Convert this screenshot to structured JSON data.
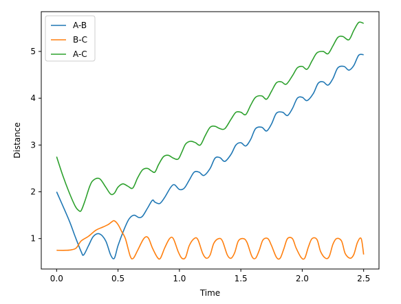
{
  "chart_data": {
    "type": "line",
    "xlabel": "Time",
    "ylabel": "Distance",
    "xlim": [
      -0.125,
      2.625
    ],
    "ylim": [
      0.35,
      5.85
    ],
    "xticks": [
      0.0,
      0.5,
      1.0,
      1.5,
      2.0,
      2.5
    ],
    "xtick_labels": [
      "0.0",
      "0.5",
      "1.0",
      "1.5",
      "2.0",
      "2.5"
    ],
    "yticks": [
      1,
      2,
      3,
      4,
      5
    ],
    "ytick_labels": [
      "1",
      "2",
      "3",
      "4",
      "5"
    ],
    "legend_position": "top-left",
    "grid": false,
    "series": [
      {
        "name": "A-B",
        "color": "#1f77b4",
        "x": [
          0.0,
          0.1,
          0.15,
          0.2,
          0.22,
          0.26,
          0.3,
          0.35,
          0.4,
          0.44,
          0.47,
          0.5,
          0.55,
          0.59,
          0.63,
          0.67,
          0.7,
          0.74,
          0.78,
          0.8,
          0.84,
          0.88,
          0.93,
          0.96,
          1.0,
          1.04,
          1.08,
          1.12,
          1.16,
          1.2,
          1.25,
          1.29,
          1.33,
          1.37,
          1.42,
          1.46,
          1.5,
          1.54,
          1.58,
          1.62,
          1.67,
          1.71,
          1.75,
          1.79,
          1.84,
          1.88,
          1.92,
          1.96,
          2.0,
          2.04,
          2.09,
          2.13,
          2.17,
          2.21,
          2.25,
          2.29,
          2.34,
          2.38,
          2.42,
          2.46,
          2.5
        ],
        "y": [
          2.0,
          1.4,
          1.05,
          0.72,
          0.65,
          0.85,
          1.05,
          1.1,
          0.95,
          0.65,
          0.58,
          0.85,
          1.2,
          1.42,
          1.5,
          1.45,
          1.48,
          1.65,
          1.82,
          1.78,
          1.75,
          1.88,
          2.1,
          2.15,
          2.05,
          2.08,
          2.25,
          2.42,
          2.42,
          2.35,
          2.5,
          2.72,
          2.73,
          2.65,
          2.8,
          3.0,
          3.05,
          2.98,
          3.12,
          3.35,
          3.38,
          3.3,
          3.45,
          3.68,
          3.7,
          3.63,
          3.78,
          4.0,
          4.02,
          3.95,
          4.1,
          4.32,
          4.35,
          4.28,
          4.42,
          4.65,
          4.68,
          4.6,
          4.7,
          4.92,
          4.93
        ]
      },
      {
        "name": "B-C",
        "color": "#ff7f0e",
        "x": [
          0.0,
          0.08,
          0.12,
          0.16,
          0.2,
          0.26,
          0.32,
          0.38,
          0.42,
          0.45,
          0.47,
          0.5,
          0.53,
          0.56,
          0.6,
          0.625,
          0.66,
          0.71,
          0.745,
          0.78,
          0.82,
          0.845,
          0.88,
          0.92,
          0.95,
          0.99,
          1.02,
          1.05,
          1.08,
          1.12,
          1.15,
          1.19,
          1.22,
          1.25,
          1.28,
          1.32,
          1.35,
          1.39,
          1.42,
          1.45,
          1.48,
          1.52,
          1.55,
          1.59,
          1.62,
          1.65,
          1.68,
          1.72,
          1.75,
          1.79,
          1.82,
          1.85,
          1.88,
          1.92,
          1.95,
          1.99,
          2.02,
          2.05,
          2.08,
          2.12,
          2.15,
          2.19,
          2.22,
          2.25,
          2.28,
          2.32,
          2.35,
          2.39,
          2.42,
          2.45,
          2.48,
          2.5
        ],
        "y": [
          0.75,
          0.75,
          0.76,
          0.8,
          0.95,
          1.05,
          1.18,
          1.25,
          1.3,
          1.36,
          1.38,
          1.3,
          1.15,
          1.0,
          0.62,
          0.58,
          0.75,
          1.0,
          1.02,
          0.8,
          0.6,
          0.58,
          0.8,
          1.0,
          1.0,
          0.72,
          0.58,
          0.6,
          0.85,
          1.0,
          0.98,
          0.68,
          0.58,
          0.65,
          0.9,
          1.0,
          0.95,
          0.65,
          0.58,
          0.7,
          0.95,
          1.0,
          0.92,
          0.62,
          0.58,
          0.75,
          0.97,
          1.0,
          0.85,
          0.6,
          0.58,
          0.78,
          1.0,
          1.0,
          0.8,
          0.6,
          0.58,
          0.82,
          1.0,
          0.98,
          0.72,
          0.58,
          0.62,
          0.88,
          1.0,
          0.95,
          0.68,
          0.58,
          0.66,
          0.92,
          1.0,
          0.66
        ]
      },
      {
        "name": "A-C",
        "color": "#2ca02c",
        "x": [
          0.0,
          0.05,
          0.1,
          0.15,
          0.18,
          0.2,
          0.23,
          0.27,
          0.3,
          0.35,
          0.4,
          0.44,
          0.47,
          0.5,
          0.54,
          0.58,
          0.62,
          0.66,
          0.7,
          0.74,
          0.77,
          0.8,
          0.83,
          0.87,
          0.91,
          0.95,
          0.99,
          1.02,
          1.05,
          1.09,
          1.13,
          1.17,
          1.21,
          1.25,
          1.29,
          1.33,
          1.37,
          1.42,
          1.46,
          1.5,
          1.54,
          1.58,
          1.62,
          1.67,
          1.71,
          1.75,
          1.79,
          1.83,
          1.87,
          1.92,
          1.96,
          2.0,
          2.04,
          2.08,
          2.12,
          2.17,
          2.21,
          2.25,
          2.29,
          2.33,
          2.38,
          2.42,
          2.46,
          2.5
        ],
        "y": [
          2.75,
          2.35,
          2.0,
          1.7,
          1.6,
          1.6,
          1.8,
          2.12,
          2.25,
          2.28,
          2.1,
          1.95,
          1.97,
          2.1,
          2.17,
          2.12,
          2.08,
          2.3,
          2.47,
          2.5,
          2.45,
          2.42,
          2.58,
          2.75,
          2.78,
          2.72,
          2.7,
          2.85,
          3.02,
          3.08,
          3.05,
          3.0,
          3.2,
          3.38,
          3.4,
          3.35,
          3.35,
          3.55,
          3.7,
          3.7,
          3.65,
          3.85,
          4.02,
          4.05,
          3.98,
          4.15,
          4.33,
          4.35,
          4.3,
          4.48,
          4.65,
          4.68,
          4.62,
          4.8,
          4.97,
          5.0,
          4.95,
          5.12,
          5.3,
          5.32,
          5.25,
          5.45,
          5.62,
          5.6
        ]
      }
    ]
  }
}
